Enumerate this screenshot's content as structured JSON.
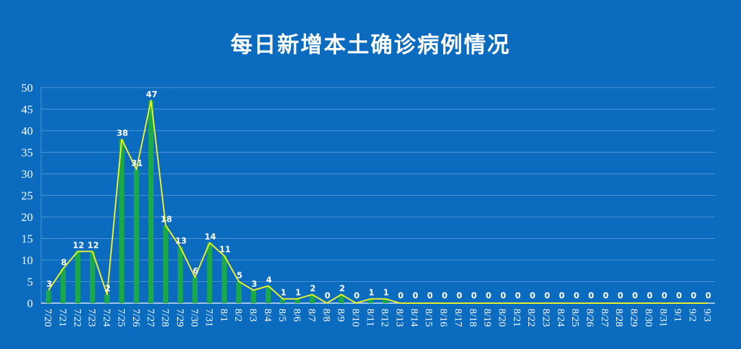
{
  "chart_data": {
    "type": "bar",
    "title": "每日新增本土确诊病例情况",
    "xlabel": "",
    "ylabel": "",
    "ylim": [
      0,
      50
    ],
    "yticks": [
      0,
      5,
      10,
      15,
      20,
      25,
      30,
      35,
      40,
      45,
      50
    ],
    "grid": true,
    "legend": "none",
    "categories": [
      "7/20",
      "7/21",
      "7/22",
      "7/23",
      "7/24",
      "7/25",
      "7/26",
      "7/27",
      "7/28",
      "7/29",
      "7/30",
      "7/31",
      "8/1",
      "8/2",
      "8/3",
      "8/4",
      "8/5",
      "8/6",
      "8/7",
      "8/8",
      "8/9",
      "8/10",
      "8/11",
      "8/12",
      "8/13",
      "8/14",
      "8/15",
      "8/16",
      "8/17",
      "8/18",
      "8/19",
      "8/20",
      "8/21",
      "8/22",
      "8/23",
      "8/24",
      "8/25",
      "8/26",
      "8/27",
      "8/28",
      "8/29",
      "8/30",
      "8/31",
      "9/1",
      "9/2",
      "9/3"
    ],
    "series": [
      {
        "type": "bar",
        "values": [
          3,
          8,
          12,
          12,
          2,
          38,
          31,
          47,
          18,
          13,
          6,
          14,
          11,
          5,
          3,
          4,
          1,
          1,
          2,
          0,
          2,
          0,
          1,
          1,
          0,
          0,
          0,
          0,
          0,
          0,
          0,
          0,
          0,
          0,
          0,
          0,
          0,
          0,
          0,
          0,
          0,
          0,
          0,
          0,
          0,
          0
        ],
        "color": "#19a84a"
      },
      {
        "type": "line",
        "values": [
          3,
          8,
          12,
          12,
          2,
          38,
          31,
          47,
          18,
          13,
          6,
          14,
          11,
          5,
          3,
          4,
          1,
          1,
          2,
          0,
          2,
          0,
          1,
          1,
          0,
          0,
          0,
          0,
          0,
          0,
          0,
          0,
          0,
          0,
          0,
          0,
          0,
          0,
          0,
          0,
          0,
          0,
          0,
          0,
          0,
          0
        ],
        "color": "#eef22a"
      }
    ],
    "colors": {
      "background": "#0a6bbf",
      "grid": "#4f95d4",
      "axis_text": "#ffffff",
      "data_label": "#ffffff"
    }
  }
}
